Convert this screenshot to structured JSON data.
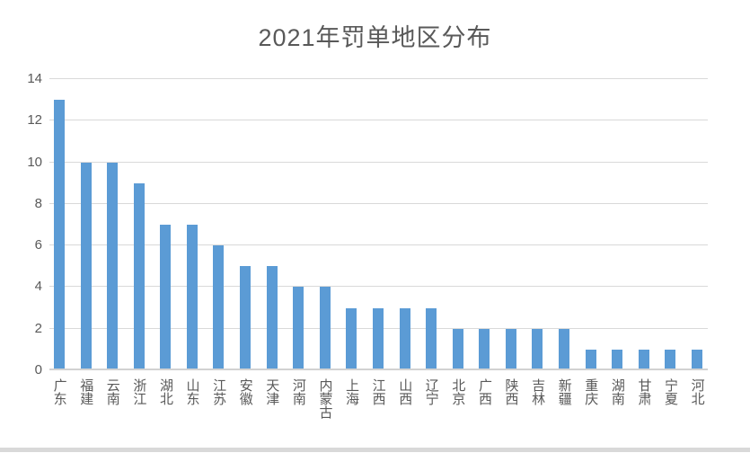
{
  "chart_data": {
    "type": "bar",
    "title": "2021年罚单地区分布",
    "categories": [
      "广东",
      "福建",
      "云南",
      "浙江",
      "湖北",
      "山东",
      "江苏",
      "安徽",
      "天津",
      "河南",
      "内蒙古",
      "上海",
      "江西",
      "山西",
      "辽宁",
      "北京",
      "广西",
      "陕西",
      "吉林",
      "新疆",
      "重庆",
      "湖南",
      "甘肃",
      "宁夏",
      "河北"
    ],
    "values": [
      13,
      10,
      10,
      9,
      7,
      7,
      6,
      5,
      5,
      4,
      4,
      3,
      3,
      3,
      3,
      2,
      2,
      2,
      2,
      2,
      1,
      1,
      1,
      1,
      1
    ],
    "xlabel": "",
    "ylabel": "",
    "ylim": [
      0,
      14
    ],
    "yticks": [
      0,
      2,
      4,
      6,
      8,
      10,
      12,
      14
    ],
    "grid": true,
    "legend_position": "none",
    "bar_color": "#5b9bd5",
    "gridline_color": "#d9d9d9",
    "axis_line_color": "#d2d2d2",
    "text_color": "#595959",
    "background_color": "#ffffff"
  },
  "window": {
    "bottom_strip_color": "#d9d9d9"
  }
}
